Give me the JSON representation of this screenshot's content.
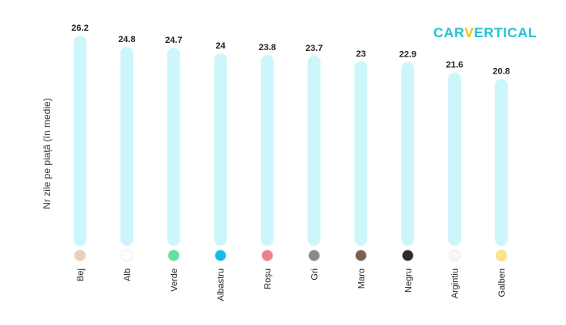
{
  "brand": {
    "part1": "CAR",
    "part2": "V",
    "part3": "ERTICAL"
  },
  "chart_data": {
    "type": "bar",
    "ylabel": "Nr zile pe piață (în medie)",
    "xlabel": "",
    "title": "",
    "ylim": [
      0,
      26.2
    ],
    "categories": [
      "Bej",
      "Alb",
      "Verde",
      "Albastru",
      "Roșu",
      "Gri",
      "Maro",
      "Negru",
      "Argintiu",
      "Galben"
    ],
    "values": [
      26.2,
      24.8,
      24.7,
      24,
      23.8,
      23.7,
      23,
      22.9,
      21.6,
      20.8
    ],
    "value_labels": [
      "26.2",
      "24.8",
      "24.7",
      "24",
      "23.8",
      "23.7",
      "23",
      "22.9",
      "21.6",
      "20.8"
    ],
    "swatch_colors": [
      "#e9d2b4",
      "#ffffff",
      "#5ee39a",
      "#14bcec",
      "#f47e8a",
      "#8a8a8a",
      "#7b6150",
      "#2b2b2b",
      "#f7f7f9",
      "#fce57a"
    ],
    "bar_color": "#cdf6fb",
    "grid": false,
    "legend": "none"
  }
}
